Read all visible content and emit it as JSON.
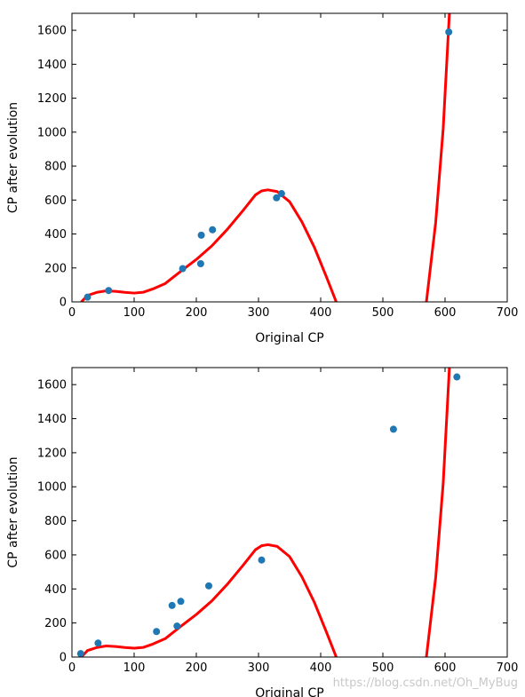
{
  "chart_data": [
    {
      "type": "scatter",
      "xlabel": "Original CP",
      "ylabel": "CP after evolution",
      "xlim": [
        0,
        700
      ],
      "ylim": [
        0,
        1700
      ],
      "xticks": [
        "0",
        "100",
        "200",
        "300",
        "400",
        "500",
        "600",
        "700"
      ],
      "yticks": [
        "0",
        "200",
        "400",
        "600",
        "800",
        "1000",
        "1200",
        "1400",
        "1600"
      ],
      "points": [
        {
          "x": 25,
          "y": 28
        },
        {
          "x": 59,
          "y": 67
        },
        {
          "x": 178,
          "y": 196
        },
        {
          "x": 207,
          "y": 225
        },
        {
          "x": 208,
          "y": 393
        },
        {
          "x": 226,
          "y": 425
        },
        {
          "x": 329,
          "y": 613
        },
        {
          "x": 337,
          "y": 638
        },
        {
          "x": 606,
          "y": 1590
        }
      ],
      "point_color": "#1f77b4",
      "curve_color": "#ff0000",
      "curve": [
        [
          15,
          0
        ],
        [
          25,
          38
        ],
        [
          40,
          56
        ],
        [
          55,
          65
        ],
        [
          70,
          62
        ],
        [
          85,
          56
        ],
        [
          100,
          52
        ],
        [
          115,
          57
        ],
        [
          130,
          76
        ],
        [
          150,
          108
        ],
        [
          175,
          180
        ],
        [
          200,
          250
        ],
        [
          225,
          330
        ],
        [
          250,
          428
        ],
        [
          275,
          538
        ],
        [
          295,
          630
        ],
        [
          305,
          654
        ],
        [
          315,
          660
        ],
        [
          330,
          650
        ],
        [
          350,
          590
        ],
        [
          370,
          470
        ],
        [
          390,
          320
        ],
        [
          410,
          140
        ],
        [
          425,
          0
        ]
      ],
      "curve2": [
        [
          570,
          0
        ],
        [
          585,
          470
        ],
        [
          597,
          1020
        ],
        [
          607,
          1700
        ]
      ]
    },
    {
      "type": "scatter",
      "xlabel": "Original CP",
      "ylabel": "CP after evolution",
      "xlim": [
        0,
        700
      ],
      "ylim": [
        0,
        1700
      ],
      "xticks": [
        "0",
        "100",
        "200",
        "300",
        "400",
        "500",
        "600",
        "700"
      ],
      "yticks": [
        "0",
        "200",
        "400",
        "600",
        "800",
        "1000",
        "1200",
        "1400",
        "1600"
      ],
      "points": [
        {
          "x": 14,
          "y": 20
        },
        {
          "x": 42,
          "y": 82
        },
        {
          "x": 136,
          "y": 150
        },
        {
          "x": 161,
          "y": 303
        },
        {
          "x": 169,
          "y": 182
        },
        {
          "x": 175,
          "y": 327
        },
        {
          "x": 220,
          "y": 418
        },
        {
          "x": 305,
          "y": 570
        },
        {
          "x": 517,
          "y": 1338
        },
        {
          "x": 619,
          "y": 1645
        }
      ],
      "point_color": "#1f77b4",
      "curve_color": "#ff0000",
      "curve": [
        [
          15,
          0
        ],
        [
          25,
          38
        ],
        [
          40,
          56
        ],
        [
          55,
          65
        ],
        [
          70,
          62
        ],
        [
          85,
          56
        ],
        [
          100,
          52
        ],
        [
          115,
          57
        ],
        [
          130,
          76
        ],
        [
          150,
          108
        ],
        [
          175,
          180
        ],
        [
          200,
          250
        ],
        [
          225,
          330
        ],
        [
          250,
          428
        ],
        [
          275,
          538
        ],
        [
          295,
          630
        ],
        [
          305,
          654
        ],
        [
          315,
          660
        ],
        [
          330,
          650
        ],
        [
          350,
          590
        ],
        [
          370,
          470
        ],
        [
          390,
          320
        ],
        [
          410,
          140
        ],
        [
          425,
          0
        ]
      ],
      "curve2": [
        [
          570,
          0
        ],
        [
          585,
          470
        ],
        [
          597,
          1020
        ],
        [
          607,
          1700
        ]
      ]
    }
  ],
  "watermark": "https://blog.csdn.net/Oh_MyBug"
}
